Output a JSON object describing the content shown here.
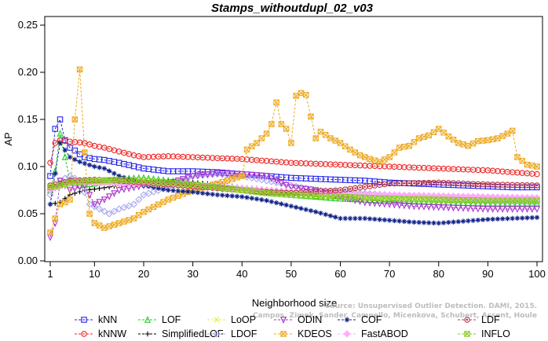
{
  "chart_data": {
    "type": "line",
    "title": "Stamps_withoutdupl_02_v03",
    "xlabel": "Neighborhood size",
    "ylabel": "AP",
    "xlim": [
      1,
      100
    ],
    "ylim": [
      0,
      0.25
    ],
    "xticks": [
      1,
      10,
      20,
      30,
      40,
      50,
      60,
      70,
      80,
      90,
      100
    ],
    "yticks": [
      "0.00",
      "0.05",
      "0.10",
      "0.15",
      "0.20",
      "0.25"
    ],
    "grid": false,
    "legend_position": "bottom",
    "credit": [
      "Source: Unsupervised Outlier Detection. DAMI, 2015.",
      "Campos, Zimek, Sander, Campello, Micenkova, Schubert, Assent, Houle"
    ],
    "series": [
      {
        "name": "kNN",
        "color": "#2222ee",
        "marker": "square",
        "points": [
          [
            1,
            0.09
          ],
          [
            2,
            0.14
          ],
          [
            3,
            0.15
          ],
          [
            4,
            0.128
          ],
          [
            5,
            0.12
          ],
          [
            6,
            0.117
          ],
          [
            7,
            0.113
          ],
          [
            8,
            0.11
          ],
          [
            10,
            0.108
          ],
          [
            12,
            0.107
          ],
          [
            15,
            0.104
          ],
          [
            20,
            0.098
          ],
          [
            25,
            0.095
          ],
          [
            30,
            0.095
          ],
          [
            35,
            0.094
          ],
          [
            40,
            0.092
          ],
          [
            45,
            0.09
          ],
          [
            50,
            0.088
          ],
          [
            55,
            0.087
          ],
          [
            60,
            0.086
          ],
          [
            65,
            0.085
          ],
          [
            70,
            0.083
          ],
          [
            75,
            0.082
          ],
          [
            80,
            0.081
          ],
          [
            85,
            0.08
          ],
          [
            90,
            0.079
          ],
          [
            95,
            0.078
          ],
          [
            100,
            0.078
          ]
        ]
      },
      {
        "name": "kNNW",
        "color": "#ee2222",
        "marker": "circle",
        "points": [
          [
            1,
            0.104
          ],
          [
            2,
            0.125
          ],
          [
            3,
            0.128
          ],
          [
            4,
            0.127
          ],
          [
            6,
            0.126
          ],
          [
            8,
            0.125
          ],
          [
            10,
            0.122
          ],
          [
            12,
            0.12
          ],
          [
            15,
            0.116
          ],
          [
            18,
            0.112
          ],
          [
            20,
            0.11
          ],
          [
            25,
            0.111
          ],
          [
            30,
            0.11
          ],
          [
            35,
            0.109
          ],
          [
            40,
            0.108
          ],
          [
            45,
            0.106
          ],
          [
            50,
            0.104
          ],
          [
            55,
            0.103
          ],
          [
            60,
            0.102
          ],
          [
            65,
            0.101
          ],
          [
            70,
            0.1
          ],
          [
            75,
            0.099
          ],
          [
            80,
            0.098
          ],
          [
            85,
            0.097
          ],
          [
            90,
            0.096
          ],
          [
            95,
            0.094
          ],
          [
            100,
            0.092
          ]
        ]
      },
      {
        "name": "LOF",
        "color": "#22cc22",
        "marker": "triangle-up",
        "points": [
          [
            1,
            0.075
          ],
          [
            2,
            0.095
          ],
          [
            3,
            0.135
          ],
          [
            4,
            0.11
          ],
          [
            5,
            0.085
          ],
          [
            7,
            0.08
          ],
          [
            10,
            0.082
          ],
          [
            15,
            0.087
          ],
          [
            20,
            0.088
          ],
          [
            25,
            0.085
          ],
          [
            30,
            0.082
          ],
          [
            35,
            0.078
          ],
          [
            40,
            0.075
          ],
          [
            45,
            0.072
          ],
          [
            50,
            0.07
          ],
          [
            55,
            0.068
          ],
          [
            60,
            0.066
          ],
          [
            70,
            0.064
          ],
          [
            80,
            0.062
          ],
          [
            90,
            0.061
          ],
          [
            100,
            0.061
          ]
        ]
      },
      {
        "name": "SimplifiedLOF",
        "color": "#000000",
        "marker": "plus",
        "points": [
          [
            1,
            0.06
          ],
          [
            3,
            0.062
          ],
          [
            5,
            0.07
          ],
          [
            8,
            0.075
          ],
          [
            10,
            0.076
          ],
          [
            15,
            0.08
          ],
          [
            20,
            0.083
          ],
          [
            25,
            0.084
          ],
          [
            30,
            0.083
          ],
          [
            35,
            0.081
          ],
          [
            40,
            0.078
          ],
          [
            45,
            0.076
          ],
          [
            50,
            0.074
          ],
          [
            55,
            0.072
          ],
          [
            60,
            0.07
          ],
          [
            70,
            0.069
          ],
          [
            80,
            0.068
          ],
          [
            90,
            0.067
          ],
          [
            100,
            0.067
          ]
        ]
      },
      {
        "name": "LoOP",
        "color": "#eeee22",
        "marker": "x",
        "points": [
          [
            1,
            0.08
          ],
          [
            3,
            0.08
          ],
          [
            5,
            0.082
          ],
          [
            10,
            0.083
          ],
          [
            15,
            0.082
          ],
          [
            20,
            0.081
          ],
          [
            25,
            0.08
          ],
          [
            30,
            0.079
          ],
          [
            35,
            0.078
          ],
          [
            40,
            0.076
          ],
          [
            45,
            0.074
          ],
          [
            50,
            0.072
          ],
          [
            60,
            0.07
          ],
          [
            70,
            0.069
          ],
          [
            80,
            0.068
          ],
          [
            90,
            0.067
          ],
          [
            100,
            0.066
          ]
        ]
      },
      {
        "name": "LDOF",
        "color": "#aaaaee",
        "marker": "diamond",
        "points": [
          [
            1,
            0.07
          ],
          [
            3,
            0.085
          ],
          [
            5,
            0.09
          ],
          [
            7,
            0.085
          ],
          [
            9,
            0.06
          ],
          [
            11,
            0.055
          ],
          [
            13,
            0.05
          ],
          [
            15,
            0.055
          ],
          [
            18,
            0.06
          ],
          [
            20,
            0.07
          ],
          [
            25,
            0.078
          ],
          [
            30,
            0.09
          ],
          [
            35,
            0.092
          ],
          [
            40,
            0.09
          ],
          [
            45,
            0.085
          ],
          [
            50,
            0.08
          ],
          [
            55,
            0.075
          ],
          [
            60,
            0.073
          ],
          [
            70,
            0.07
          ],
          [
            80,
            0.068
          ],
          [
            90,
            0.065
          ],
          [
            100,
            0.063
          ]
        ]
      },
      {
        "name": "ODIN",
        "color": "#aa33cc",
        "marker": "triangle-down",
        "points": [
          [
            1,
            0.025
          ],
          [
            2,
            0.04
          ],
          [
            3,
            0.085
          ],
          [
            5,
            0.075
          ],
          [
            8,
            0.08
          ],
          [
            10,
            0.06
          ],
          [
            12,
            0.065
          ],
          [
            15,
            0.075
          ],
          [
            20,
            0.08
          ],
          [
            25,
            0.082
          ],
          [
            30,
            0.09
          ],
          [
            35,
            0.093
          ],
          [
            40,
            0.092
          ],
          [
            45,
            0.09
          ],
          [
            50,
            0.078
          ],
          [
            55,
            0.075
          ],
          [
            60,
            0.068
          ],
          [
            65,
            0.062
          ],
          [
            70,
            0.06
          ],
          [
            75,
            0.058
          ],
          [
            80,
            0.057
          ],
          [
            85,
            0.056
          ],
          [
            90,
            0.055
          ],
          [
            95,
            0.055
          ],
          [
            100,
            0.055
          ]
        ]
      },
      {
        "name": "KDEOS",
        "color": "#eeaa22",
        "marker": "boxed-x",
        "points": [
          [
            1,
            0.03
          ],
          [
            2,
            0.045
          ],
          [
            3,
            0.06
          ],
          [
            4,
            0.062
          ],
          [
            5,
            0.065
          ],
          [
            6,
            0.15
          ],
          [
            7,
            0.203
          ],
          [
            8,
            0.115
          ],
          [
            9,
            0.05
          ],
          [
            10,
            0.04
          ],
          [
            12,
            0.035
          ],
          [
            15,
            0.04
          ],
          [
            18,
            0.045
          ],
          [
            20,
            0.052
          ],
          [
            25,
            0.065
          ],
          [
            30,
            0.075
          ],
          [
            35,
            0.082
          ],
          [
            40,
            0.09
          ],
          [
            41,
            0.118
          ],
          [
            43,
            0.125
          ],
          [
            45,
            0.135
          ],
          [
            46,
            0.145
          ],
          [
            47,
            0.168
          ],
          [
            48,
            0.145
          ],
          [
            49,
            0.14
          ],
          [
            50,
            0.125
          ],
          [
            51,
            0.175
          ],
          [
            52,
            0.178
          ],
          [
            53,
            0.176
          ],
          [
            55,
            0.13
          ],
          [
            56,
            0.137
          ],
          [
            58,
            0.13
          ],
          [
            60,
            0.125
          ],
          [
            62,
            0.118
          ],
          [
            64,
            0.112
          ],
          [
            66,
            0.108
          ],
          [
            68,
            0.105
          ],
          [
            70,
            0.11
          ],
          [
            72,
            0.12
          ],
          [
            74,
            0.122
          ],
          [
            76,
            0.13
          ],
          [
            78,
            0.133
          ],
          [
            80,
            0.14
          ],
          [
            82,
            0.132
          ],
          [
            84,
            0.125
          ],
          [
            86,
            0.122
          ],
          [
            88,
            0.127
          ],
          [
            90,
            0.128
          ],
          [
            92,
            0.13
          ],
          [
            94,
            0.135
          ],
          [
            95,
            0.138
          ],
          [
            96,
            0.11
          ],
          [
            98,
            0.102
          ],
          [
            100,
            0.1
          ]
        ]
      },
      {
        "name": "COF",
        "color": "#112288",
        "marker": "asterisk",
        "points": [
          [
            1,
            0.06
          ],
          [
            3,
            0.125
          ],
          [
            5,
            0.11
          ],
          [
            7,
            0.105
          ],
          [
            10,
            0.1
          ],
          [
            12,
            0.098
          ],
          [
            15,
            0.09
          ],
          [
            18,
            0.085
          ],
          [
            20,
            0.08
          ],
          [
            25,
            0.075
          ],
          [
            30,
            0.073
          ],
          [
            35,
            0.07
          ],
          [
            40,
            0.068
          ],
          [
            45,
            0.064
          ],
          [
            50,
            0.058
          ],
          [
            55,
            0.052
          ],
          [
            60,
            0.045
          ],
          [
            65,
            0.045
          ],
          [
            70,
            0.043
          ],
          [
            75,
            0.041
          ],
          [
            80,
            0.04
          ],
          [
            85,
            0.042
          ],
          [
            90,
            0.044
          ],
          [
            95,
            0.045
          ],
          [
            100,
            0.046
          ]
        ]
      },
      {
        "name": "FastABOD",
        "color": "#ffaaff",
        "marker": "diamond-filled",
        "points": [
          [
            1,
            0.075
          ],
          [
            3,
            0.08
          ],
          [
            5,
            0.082
          ],
          [
            10,
            0.083
          ],
          [
            15,
            0.082
          ],
          [
            20,
            0.082
          ],
          [
            25,
            0.081
          ],
          [
            30,
            0.08
          ],
          [
            35,
            0.079
          ],
          [
            40,
            0.077
          ],
          [
            45,
            0.075
          ],
          [
            50,
            0.073
          ],
          [
            60,
            0.071
          ],
          [
            70,
            0.07
          ],
          [
            80,
            0.069
          ],
          [
            90,
            0.068
          ],
          [
            100,
            0.067
          ]
        ]
      },
      {
        "name": "LDF",
        "color": "#bb3344",
        "marker": "circle-dot",
        "points": [
          [
            1,
            0.08
          ],
          [
            3,
            0.082
          ],
          [
            5,
            0.085
          ],
          [
            10,
            0.086
          ],
          [
            15,
            0.085
          ],
          [
            20,
            0.083
          ],
          [
            25,
            0.081
          ],
          [
            30,
            0.079
          ],
          [
            35,
            0.077
          ],
          [
            40,
            0.075
          ],
          [
            45,
            0.073
          ],
          [
            50,
            0.072
          ],
          [
            60,
            0.075
          ],
          [
            70,
            0.082
          ],
          [
            80,
            0.083
          ],
          [
            90,
            0.081
          ],
          [
            100,
            0.08
          ]
        ]
      },
      {
        "name": "INFLO",
        "color": "#88cc22",
        "marker": "hourglass",
        "points": [
          [
            1,
            0.078
          ],
          [
            3,
            0.08
          ],
          [
            5,
            0.083
          ],
          [
            10,
            0.085
          ],
          [
            15,
            0.086
          ],
          [
            20,
            0.085
          ],
          [
            25,
            0.083
          ],
          [
            30,
            0.081
          ],
          [
            35,
            0.078
          ],
          [
            40,
            0.075
          ],
          [
            45,
            0.072
          ],
          [
            50,
            0.07
          ],
          [
            60,
            0.068
          ],
          [
            70,
            0.066
          ],
          [
            80,
            0.065
          ],
          [
            90,
            0.064
          ],
          [
            100,
            0.064
          ]
        ]
      }
    ]
  }
}
